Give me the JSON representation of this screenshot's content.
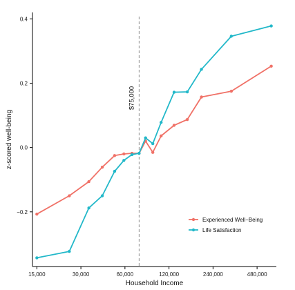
{
  "chart_data": {
    "type": "line",
    "title": "",
    "xlabel": "Household Income",
    "ylabel": "z-scored well-being",
    "x_scale": "log2",
    "xlim": [
      14000,
      650000
    ],
    "ylim": [
      -0.37,
      0.42
    ],
    "x_ticks": [
      15000,
      30000,
      60000,
      120000,
      240000,
      480000
    ],
    "x_tick_labels": [
      "15,000",
      "30,000",
      "60,000",
      "120,000",
      "240,000",
      "480,000"
    ],
    "y_ticks": [
      -0.2,
      0.0,
      0.2,
      0.4
    ],
    "y_tick_labels": [
      "−0.2",
      "0.0",
      "0.2",
      "0.4"
    ],
    "grid": false,
    "legend_position": "bottom-right",
    "colors": {
      "experienced": "#f07167",
      "life_satisfaction": "#22b8c9",
      "reference_line": "#8f8f8f"
    },
    "annotations": [
      {
        "x": 75000,
        "text": "$75,000"
      }
    ],
    "series": [
      {
        "name": "Experienced Well−Being",
        "color": "#f07167",
        "x": [
          15000,
          25000,
          34000,
          42000,
          51000,
          59000,
          67000,
          75000,
          83000,
          93000,
          106000,
          130000,
          160000,
          200000,
          320000,
          600000
        ],
        "values": [
          -0.207,
          -0.15,
          -0.106,
          -0.061,
          -0.025,
          -0.02,
          -0.018,
          -0.018,
          0.02,
          -0.015,
          0.036,
          0.069,
          0.087,
          0.157,
          0.175,
          0.253
        ]
      },
      {
        "name": "Life Satisfaction",
        "color": "#22b8c9",
        "x": [
          15000,
          25000,
          34000,
          42000,
          51000,
          59000,
          67000,
          75000,
          83000,
          93000,
          106000,
          130000,
          160000,
          200000,
          320000,
          600000
        ],
        "values": [
          -0.343,
          -0.323,
          -0.188,
          -0.15,
          -0.074,
          -0.04,
          -0.022,
          -0.018,
          0.03,
          0.012,
          0.078,
          0.172,
          0.173,
          0.243,
          0.346,
          0.378
        ]
      }
    ]
  }
}
